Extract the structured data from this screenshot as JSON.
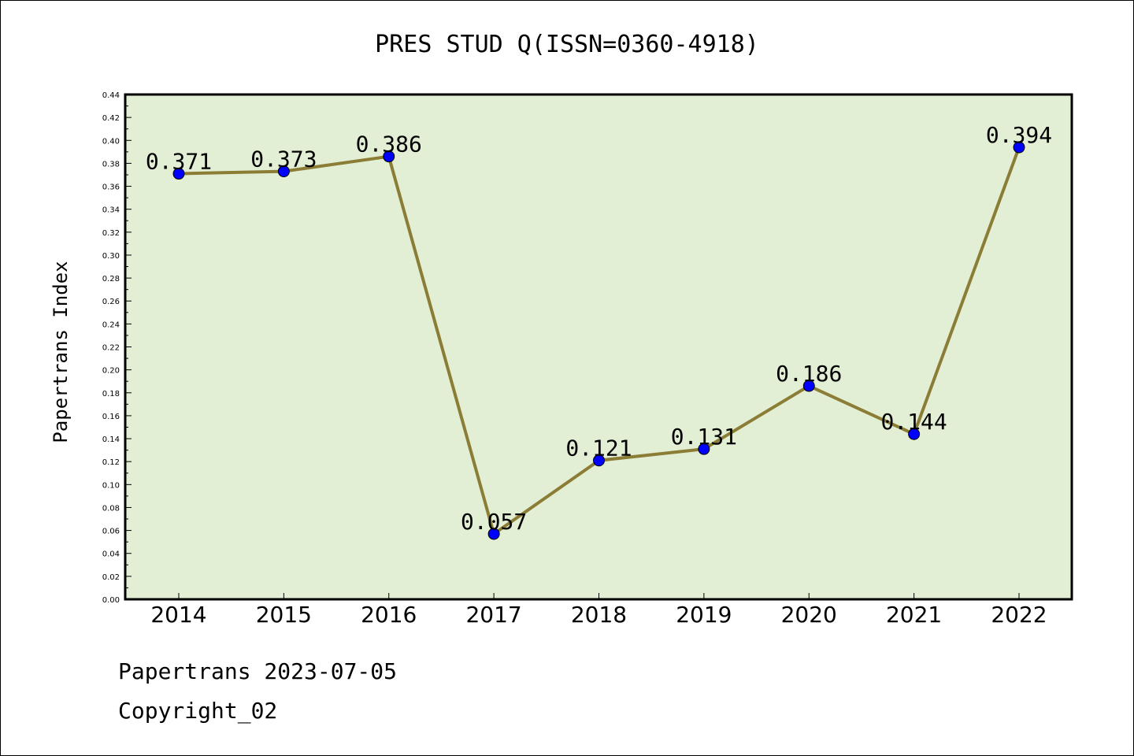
{
  "chart_data": {
    "type": "line",
    "title": "PRES STUD Q(ISSN=0360-4918)",
    "xlabel": "",
    "ylabel": "Papertrans Index",
    "categories": [
      "2014",
      "2015",
      "2016",
      "2017",
      "2018",
      "2019",
      "2020",
      "2021",
      "2022"
    ],
    "values": [
      0.371,
      0.373,
      0.386,
      0.057,
      0.121,
      0.131,
      0.186,
      0.144,
      0.394
    ],
    "data_labels": [
      "0.371",
      "0.373",
      "0.386",
      "0.057",
      "0.121",
      "0.131",
      "0.186",
      "0.144",
      "0.394"
    ],
    "ylim": [
      0,
      0.44
    ],
    "y_ticks": [
      "0.00",
      "0.02",
      "0.04",
      "0.06",
      "0.08",
      "0.10",
      "0.12",
      "0.14",
      "0.16",
      "0.18",
      "0.20",
      "0.22",
      "0.24",
      "0.26",
      "0.28",
      "0.30",
      "0.32",
      "0.34",
      "0.36",
      "0.38",
      "0.40",
      "0.42",
      "0.44"
    ],
    "grid": false,
    "legend": "none",
    "colors": {
      "plot_background": "#e2efd4",
      "line": "#8b7d35",
      "marker": "#0000ff",
      "axis": "#000000"
    }
  },
  "footer": {
    "source": "Papertrans 2023-07-05",
    "copyright": "Copyright_02"
  }
}
